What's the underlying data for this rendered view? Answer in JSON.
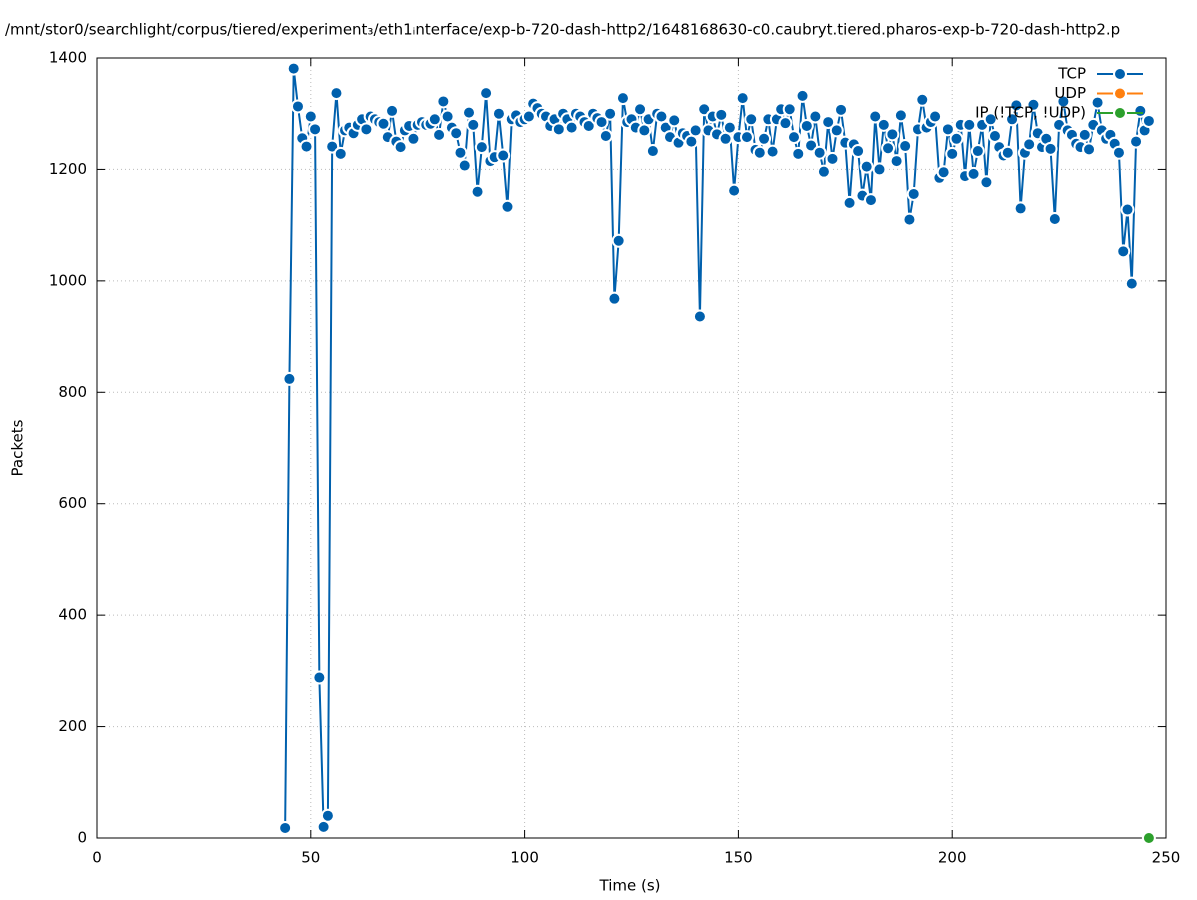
{
  "chart_data": {
    "type": "line",
    "title": "/mnt/stor0/searchlight/corpus/tiered/experiment₃/eth1ᵢnterface/exp-b-720-dash-http2/1648168630-c0.caubryt.tiered.pharos-exp-b-720-dash-http2.p",
    "x_label": "Time (s)",
    "y_label": "Packets",
    "xlim": [
      0,
      250
    ],
    "xticks": [
      0,
      50,
      100,
      150,
      200,
      250
    ],
    "ylim": [
      0,
      1400
    ],
    "yticks": [
      0,
      200,
      400,
      600,
      800,
      1000,
      1200,
      1400
    ],
    "grid": true,
    "legend": "top-right",
    "series": [
      {
        "name": "TCP",
        "color": "#0060ad",
        "x": [
          44,
          45,
          46,
          47,
          48,
          49,
          50,
          51,
          52,
          53,
          54,
          55,
          56,
          57,
          58,
          59,
          60,
          61,
          62,
          63,
          64,
          65,
          66,
          67,
          68,
          69,
          70,
          71,
          72,
          73,
          74,
          75,
          76,
          77,
          78,
          79,
          80,
          81,
          82,
          83,
          84,
          85,
          86,
          87,
          88,
          89,
          90,
          91,
          92,
          93,
          94,
          95,
          96,
          97,
          98,
          99,
          100,
          101,
          102,
          103,
          104,
          105,
          106,
          107,
          108,
          109,
          110,
          111,
          112,
          113,
          114,
          115,
          116,
          117,
          118,
          119,
          120,
          121,
          122,
          123,
          124,
          125,
          126,
          127,
          128,
          129,
          130,
          131,
          132,
          133,
          134,
          135,
          136,
          137,
          138,
          139,
          140,
          141,
          142,
          143,
          144,
          145,
          146,
          147,
          148,
          149,
          150,
          151,
          152,
          153,
          154,
          155,
          156,
          157,
          158,
          159,
          160,
          161,
          162,
          163,
          164,
          165,
          166,
          167,
          168,
          169,
          170,
          171,
          172,
          173,
          174,
          175,
          176,
          177,
          178,
          179,
          180,
          181,
          182,
          183,
          184,
          185,
          186,
          187,
          188,
          189,
          190,
          191,
          192,
          193,
          194,
          195,
          196,
          197,
          198,
          199,
          200,
          201,
          202,
          203,
          204,
          205,
          206,
          207,
          208,
          209,
          210,
          211,
          212,
          213,
          214,
          215,
          216,
          217,
          218,
          219,
          220,
          221,
          222,
          223,
          224,
          225,
          226,
          227,
          228,
          229,
          230,
          231,
          232,
          233,
          234,
          235,
          236,
          237,
          238,
          239,
          240,
          241,
          242,
          243,
          244,
          245,
          246
        ],
        "values": [
          18,
          824,
          1381,
          1313,
          1256,
          1241,
          1295,
          1272,
          288,
          20,
          40,
          1241,
          1337,
          1228,
          1270,
          1275,
          1265,
          1280,
          1290,
          1272,
          1295,
          1290,
          1285,
          1282,
          1258,
          1305,
          1250,
          1240,
          1270,
          1278,
          1255,
          1280,
          1285,
          1280,
          1282,
          1290,
          1262,
          1322,
          1295,
          1275,
          1265,
          1230,
          1207,
          1302,
          1280,
          1160,
          1240,
          1337,
          1215,
          1222,
          1300,
          1225,
          1133,
          1290,
          1297,
          1285,
          1290,
          1295,
          1318,
          1310,
          1300,
          1295,
          1278,
          1290,
          1272,
          1300,
          1290,
          1275,
          1300,
          1295,
          1285,
          1278,
          1300,
          1292,
          1285,
          1260,
          1300,
          968,
          1072,
          1328,
          1285,
          1290,
          1275,
          1308,
          1270,
          1290,
          1233,
          1300,
          1295,
          1275,
          1258,
          1288,
          1248,
          1265,
          1260,
          1250,
          1270,
          936,
          1308,
          1270,
          1295,
          1263,
          1298,
          1255,
          1275,
          1162,
          1258,
          1328,
          1258,
          1290,
          1235,
          1230,
          1255,
          1290,
          1232,
          1290,
          1308,
          1283,
          1308,
          1258,
          1228,
          1332,
          1278,
          1243,
          1295,
          1230,
          1196,
          1285,
          1219,
          1270,
          1307,
          1248,
          1140,
          1245,
          1233,
          1153,
          1205,
          1145,
          1295,
          1200,
          1280,
          1238,
          1263,
          1215,
          1297,
          1242,
          1110,
          1156,
          1272,
          1325,
          1275,
          1285,
          1295,
          1185,
          1195,
          1272,
          1228,
          1255,
          1280,
          1188,
          1280,
          1192,
          1233,
          1280,
          1177,
          1290,
          1260,
          1240,
          1225,
          1230,
          1290,
          1315,
          1130,
          1230,
          1245,
          1316,
          1265,
          1240,
          1255,
          1237,
          1111,
          1280,
          1322,
          1270,
          1262,
          1246,
          1240,
          1262,
          1236,
          1280,
          1320,
          1270,
          1255,
          1262,
          1246,
          1230,
          1053,
          1128,
          995,
          1250,
          1305,
          1270,
          1287
        ]
      },
      {
        "name": "UDP",
        "color": "#ff7f0e",
        "x": [],
        "values": []
      },
      {
        "name": "IP (!TCP, !UDP)",
        "color": "#2ca02c",
        "x": [
          246
        ],
        "values": [
          0
        ]
      }
    ]
  }
}
